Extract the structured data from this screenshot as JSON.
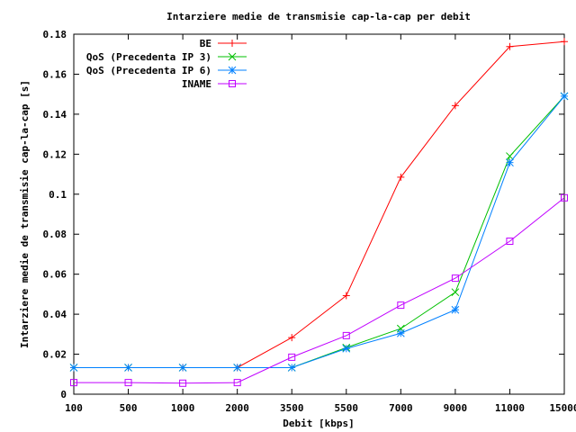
{
  "chart_data": {
    "type": "line",
    "title": "Intarziere medie de transmisie cap-la-cap per debit",
    "xlabel": "Debit [kbps]",
    "ylabel": "Intarziere medie de transmisie cap-la-cap [s]",
    "categories": [
      "100",
      "500",
      "1000",
      "2000",
      "3500",
      "5500",
      "7000",
      "9000",
      "11000",
      "15000"
    ],
    "ylim": [
      0,
      0.18
    ],
    "yticks": [
      "0",
      "0.02",
      "0.04",
      "0.06",
      "0.08",
      "0.1",
      "0.12",
      "0.14",
      "0.16",
      "0.18"
    ],
    "ytick_values": [
      0,
      0.02,
      0.04,
      0.06,
      0.08,
      0.1,
      0.12,
      0.14,
      0.16,
      0.18
    ],
    "legend_position": "top-right",
    "grid": false,
    "series": [
      {
        "name": "BE",
        "color": "#ff0000",
        "marker": "plus",
        "values": [
          0.0133,
          0.0133,
          0.0133,
          0.0133,
          0.0283,
          0.0493,
          0.1085,
          0.1443,
          0.1738,
          0.1763
        ]
      },
      {
        "name": "QoS (Precedenta IP 3)",
        "color": "#00c000",
        "marker": "cross",
        "values": [
          0.0133,
          0.0133,
          0.0133,
          0.0133,
          0.0133,
          0.0233,
          0.0328,
          0.051,
          0.119,
          0.149
        ]
      },
      {
        "name": "QoS (Precedenta IP 6)",
        "color": "#0080ff",
        "marker": "star",
        "values": [
          0.0133,
          0.0133,
          0.0133,
          0.0133,
          0.0133,
          0.0228,
          0.0305,
          0.0422,
          0.1158,
          0.149
        ]
      },
      {
        "name": "INAME",
        "color": "#c000ff",
        "marker": "square",
        "values": [
          0.0058,
          0.0058,
          0.0055,
          0.0058,
          0.0185,
          0.0293,
          0.0445,
          0.058,
          0.0765,
          0.0982
        ]
      }
    ]
  }
}
